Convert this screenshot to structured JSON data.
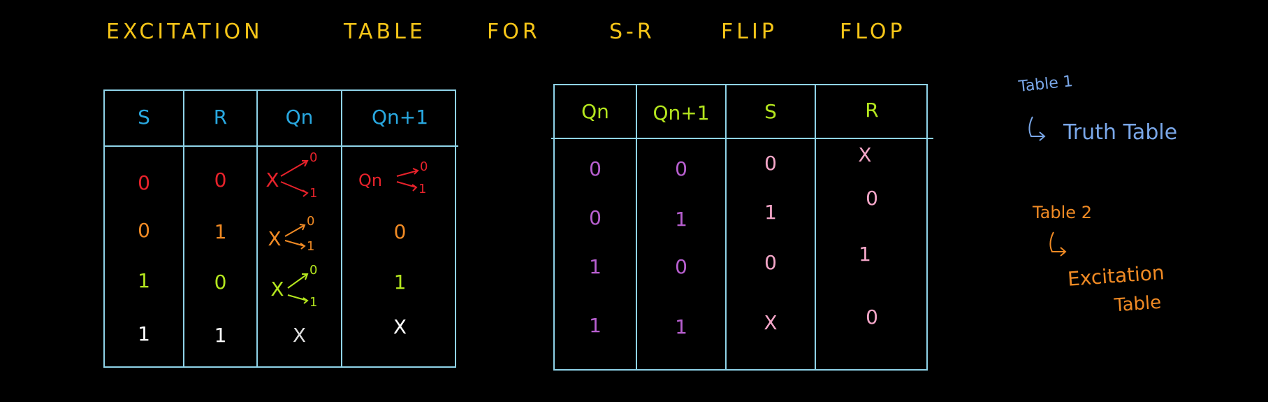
{
  "title": {
    "w1": "EXCITATION",
    "w2": "TABLE",
    "w3": "FOR",
    "w4": "S-R",
    "w5": "FLIP",
    "w6": "FLOP"
  },
  "table1": {
    "headers": [
      "S",
      "R",
      "Qn",
      "Qn+1"
    ],
    "rows": [
      [
        "0",
        "0",
        "X",
        "Qn"
      ],
      [
        "0",
        "1",
        "X",
        "0"
      ],
      [
        "1",
        "0",
        "X",
        "1"
      ],
      [
        "1",
        "1",
        "X",
        "X"
      ]
    ],
    "branch_labels": {
      "top": "0",
      "bottom": "1"
    }
  },
  "table2": {
    "headers": [
      "Qn",
      "Qn+1",
      "S",
      "R"
    ],
    "rows": [
      [
        "0",
        "0",
        "0",
        "X"
      ],
      [
        "0",
        "1",
        "1",
        "0"
      ],
      [
        "1",
        "0",
        "0",
        "1"
      ],
      [
        "1",
        "1",
        "X",
        "0"
      ]
    ]
  },
  "notes": {
    "table1_label": "Table 1",
    "table1_desc": "Truth Table",
    "table2_label": "Table 2",
    "table2_desc_line1": "Excitation",
    "table2_desc_line2": "Table"
  },
  "colors": {
    "title": "#f5c518",
    "border": "#8fd3e8",
    "t1_header": "#29a8e0",
    "t1_row1": "#e8222b",
    "t1_row2": "#f08a24",
    "t1_row3": "#b4e61e",
    "t1_row4": "#ffffff",
    "t2_header": "#b4e61e",
    "t2_qcols": "#b85fd0",
    "t2_srcols": "#f4a6c8",
    "note1": "#7aa7e8",
    "note2": "#f08a24"
  }
}
